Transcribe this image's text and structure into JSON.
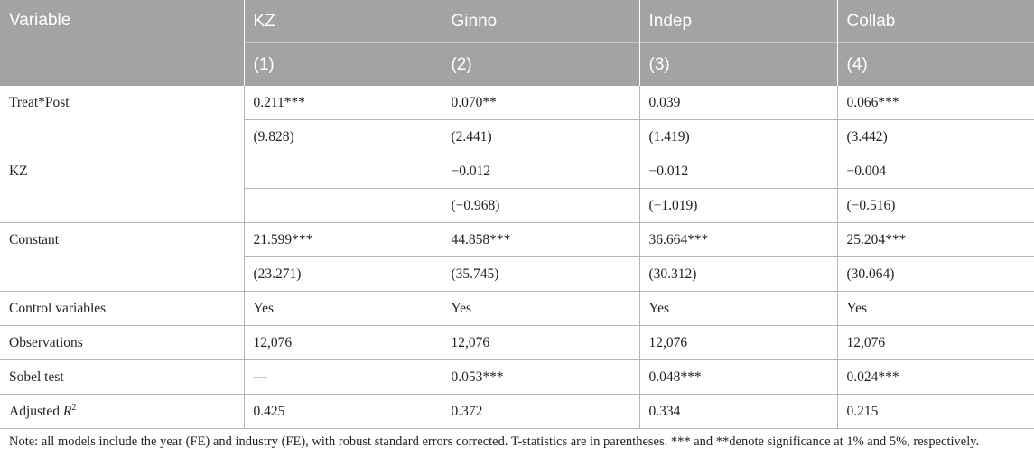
{
  "table": {
    "headers": {
      "variable": "Variable",
      "columns": [
        "KZ",
        "Ginno",
        "Indep",
        "Collab"
      ],
      "numbers": [
        "(1)",
        "(2)",
        "(3)",
        "(4)"
      ]
    },
    "rows": {
      "treat_post": {
        "label": "Treat*Post",
        "coef": [
          "0.211***",
          "0.070**",
          "0.039",
          "0.066***"
        ],
        "tstat": [
          "(9.828)",
          "(2.441)",
          "(1.419)",
          "(3.442)"
        ]
      },
      "kz": {
        "label": "KZ",
        "coef": [
          "",
          "−0.012",
          "−0.012",
          "−0.004"
        ],
        "tstat": [
          "",
          "(−0.968)",
          "(−1.019)",
          "(−0.516)"
        ]
      },
      "constant": {
        "label": "Constant",
        "coef": [
          "21.599***",
          "44.858***",
          "36.664***",
          "25.204***"
        ],
        "tstat": [
          "(23.271)",
          "(35.745)",
          "(30.312)",
          "(30.064)"
        ]
      },
      "controls": {
        "label": "Control variables",
        "values": [
          "Yes",
          "Yes",
          "Yes",
          "Yes"
        ]
      },
      "observations": {
        "label": "Observations",
        "values": [
          "12,076",
          "12,076",
          "12,076",
          "12,076"
        ]
      },
      "sobel": {
        "label": "Sobel test",
        "values": [
          "—",
          "0.053***",
          "0.048***",
          "0.024***"
        ]
      },
      "adj_r2": {
        "label_prefix": "Adjusted ",
        "label_var": "R",
        "label_sup": "2",
        "values": [
          "0.425",
          "0.372",
          "0.334",
          "0.215"
        ]
      }
    },
    "note": "Note: all models include the year (FE) and industry (FE), with robust standard errors corrected. T-statistics are in parentheses. *** and **denote significance at 1% and 5%, respectively."
  }
}
